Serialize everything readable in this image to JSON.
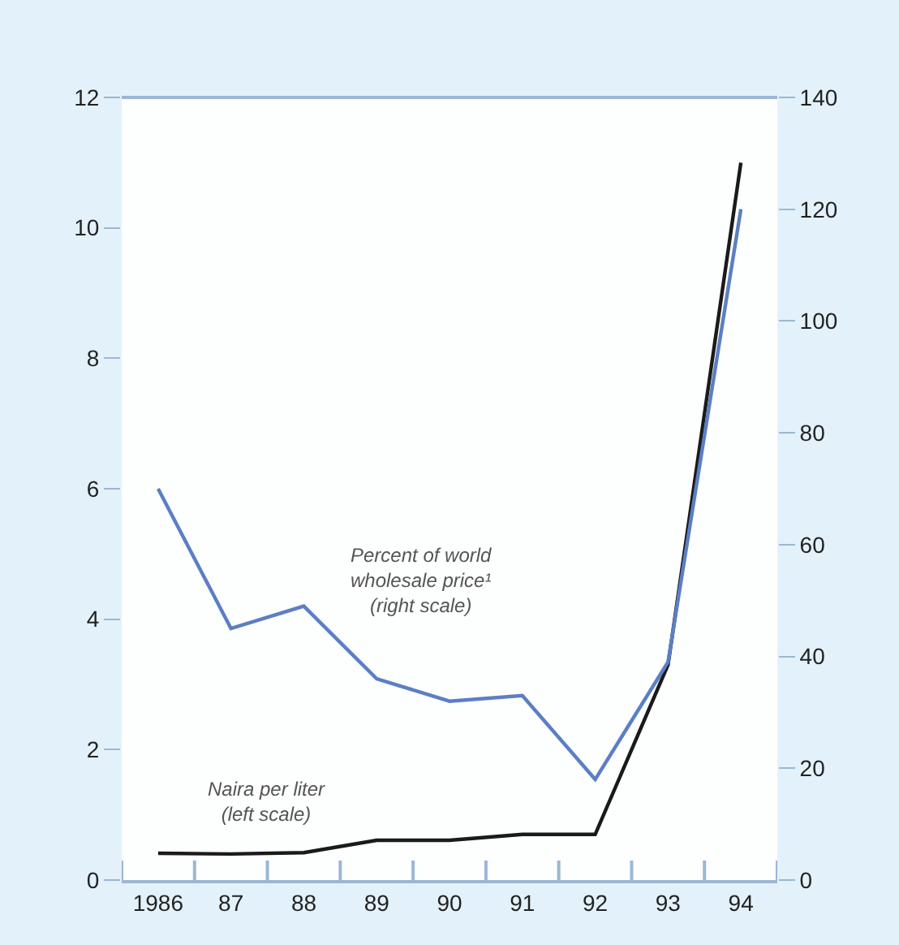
{
  "chart_data": {
    "type": "line",
    "categories": [
      "1986",
      "87",
      "88",
      "89",
      "90",
      "91",
      "92",
      "93",
      "94"
    ],
    "series": [
      {
        "name": "Naira per liter (left scale)",
        "color": "#1a1a1a",
        "values": [
          0.41,
          0.4,
          0.42,
          0.61,
          0.61,
          0.7,
          0.7,
          3.3,
          11.0
        ]
      },
      {
        "name": "Percent of world wholesale price¹ (right scale)",
        "color": "#5b7fc4",
        "axis": "y2",
        "values": [
          70,
          45,
          49,
          36,
          32,
          33,
          18,
          39,
          120
        ]
      }
    ],
    "ylim": [
      0,
      12
    ],
    "yticks": [
      0,
      2,
      4,
      6,
      8,
      10,
      12
    ],
    "y2lim": [
      0,
      140
    ],
    "y2ticks": [
      0,
      20,
      40,
      60,
      80,
      100,
      120,
      140
    ],
    "legend": false,
    "marker": "none",
    "line_style": "solid"
  }
}
